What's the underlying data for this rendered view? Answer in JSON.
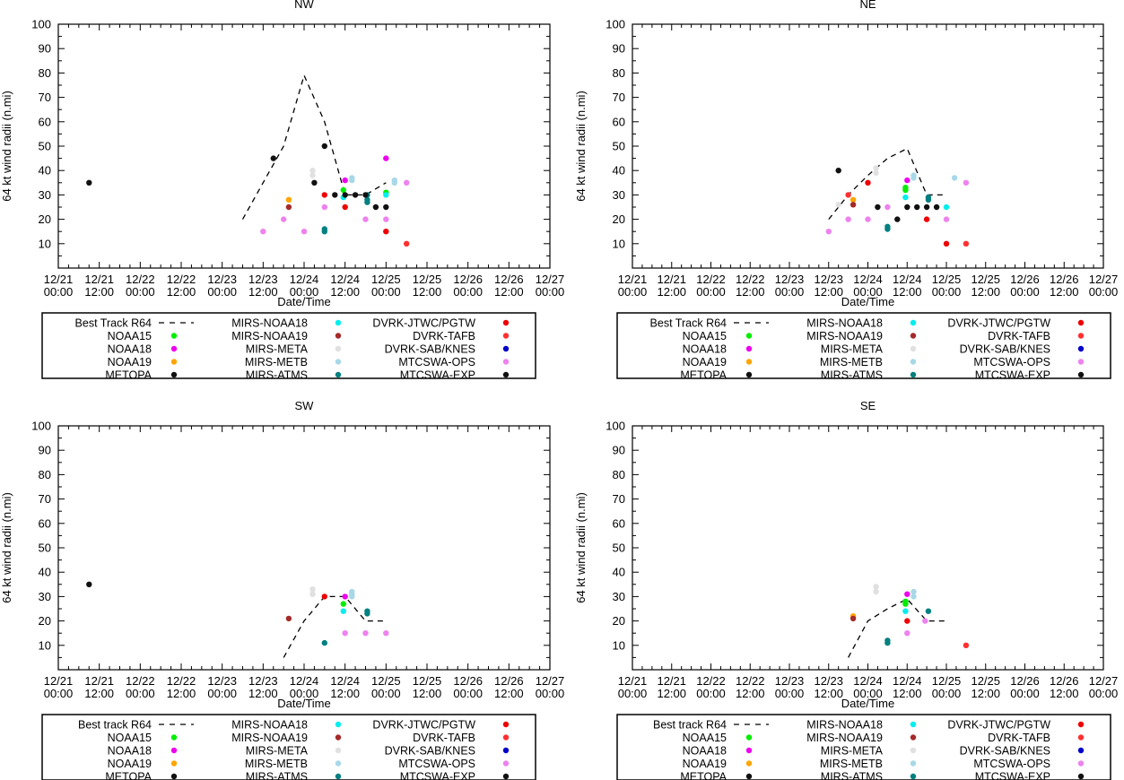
{
  "figure": {
    "x_tick_labels": [
      [
        "12/21",
        "00:00"
      ],
      [
        "12/21",
        "12:00"
      ],
      [
        "12/22",
        "00:00"
      ],
      [
        "12/22",
        "12:00"
      ],
      [
        "12/23",
        "00:00"
      ],
      [
        "12/23",
        "12:00"
      ],
      [
        "12/24",
        "00:00"
      ],
      [
        "12/24",
        "12:00"
      ],
      [
        "12/25",
        "00:00"
      ],
      [
        "12/25",
        "12:00"
      ],
      [
        "12/26",
        "00:00"
      ],
      [
        "12/26",
        "12:00"
      ],
      [
        "12/27",
        "00:00"
      ]
    ],
    "y_ticks": [
      10,
      20,
      30,
      40,
      50,
      60,
      70,
      80,
      90,
      100
    ],
    "xlabel": "Date/Time",
    "ylabel": "64 kt wind radii (n.mi)"
  },
  "colors": {
    "NOAA15": "#00ee00",
    "NOAA18": "#ee00ee",
    "NOAA19": "#ffa500",
    "METOPA": "#111111",
    "MIRS-NOAA18": "#00eeee",
    "MIRS-NOAA19": "#a52a2a",
    "MIRS-META": "#e0e0e0",
    "MIRS-METB": "#a8d8e8",
    "MIRS-ATMS": "#008080",
    "DVRK-JTWC/PGTW": "#ee0000",
    "DVRK-TAFB": "#ff3030",
    "DVRK-SAB/KNES": "#0000cc",
    "MTCSWA-OPS": "#ee82ee",
    "MTCSWA-EXP": "#111111"
  },
  "chart_data": [
    {
      "type": "scatter",
      "title": "NW",
      "xlabel": "Date/Time",
      "ylabel": "64 kt wind radii (n.mi)",
      "xlim_hours": [
        0,
        144
      ],
      "ylim": [
        0,
        100
      ],
      "legend": {
        "position": "below",
        "columns": [
          [
            "Best Track R64",
            "NOAA15",
            "NOAA18",
            "NOAA19",
            "METOPA"
          ],
          [
            "MIRS-NOAA18",
            "MIRS-NOAA19",
            "MIRS-META",
            "MIRS-METB",
            "MIRS-ATMS"
          ],
          [
            "DVRK-JTWC/PGTW",
            "DVRK-TAFB",
            "DVRK-SAB/KNES",
            "MTCSWA-OPS",
            "MTCSWA-EXP"
          ]
        ]
      },
      "best_track": [
        [
          54,
          20
        ],
        [
          60,
          35
        ],
        [
          66,
          50
        ],
        [
          72,
          79
        ],
        [
          78,
          60
        ],
        [
          84,
          30
        ],
        [
          90,
          30
        ],
        [
          96,
          35
        ]
      ],
      "points": [
        {
          "s": "METOPA",
          "x": 9,
          "y": 35
        },
        {
          "s": "METOPA",
          "x": 63,
          "y": 45
        },
        {
          "s": "MTCSWA-OPS",
          "x": 60,
          "y": 15
        },
        {
          "s": "MTCSWA-OPS",
          "x": 66,
          "y": 20
        },
        {
          "s": "NOAA19",
          "x": 67.5,
          "y": 28
        },
        {
          "s": "MIRS-NOAA19",
          "x": 67.5,
          "y": 25
        },
        {
          "s": "MTCSWA-OPS",
          "x": 72,
          "y": 15
        },
        {
          "s": "MIRS-META",
          "x": 74.5,
          "y": 40
        },
        {
          "s": "MIRS-META",
          "x": 74.5,
          "y": 38
        },
        {
          "s": "METOPA",
          "x": 75,
          "y": 35
        },
        {
          "s": "MIRS-ATMS",
          "x": 78,
          "y": 16
        },
        {
          "s": "MIRS-ATMS",
          "x": 78,
          "y": 15
        },
        {
          "s": "MTCSWA-OPS",
          "x": 78,
          "y": 25
        },
        {
          "s": "METOPA",
          "x": 78,
          "y": 50
        },
        {
          "s": "DVRK-JTWC/PGTW",
          "x": 78,
          "y": 30
        },
        {
          "s": "MTCSWA-EXP",
          "x": 81,
          "y": 30
        },
        {
          "s": "NOAA15",
          "x": 83.5,
          "y": 32
        },
        {
          "s": "MIRS-NOAA18",
          "x": 83.5,
          "y": 29
        },
        {
          "s": "NOAA18",
          "x": 84,
          "y": 36
        },
        {
          "s": "DVRK-JTWC/PGTW",
          "x": 84,
          "y": 25
        },
        {
          "s": "MTCSWA-EXP",
          "x": 84,
          "y": 30
        },
        {
          "s": "MIRS-METB",
          "x": 86,
          "y": 37
        },
        {
          "s": "MIRS-METB",
          "x": 86,
          "y": 36
        },
        {
          "s": "MTCSWA-EXP",
          "x": 87,
          "y": 30
        },
        {
          "s": "MTCSWA-OPS",
          "x": 90,
          "y": 20
        },
        {
          "s": "MIRS-ATMS",
          "x": 90.5,
          "y": 30
        },
        {
          "s": "MIRS-ATMS",
          "x": 90.5,
          "y": 28
        },
        {
          "s": "MIRS-ATMS",
          "x": 90.5,
          "y": 27
        },
        {
          "s": "MTCSWA-EXP",
          "x": 90,
          "y": 30
        },
        {
          "s": "MTCSWA-EXP",
          "x": 93,
          "y": 25
        },
        {
          "s": "MTCSWA-EXP",
          "x": 96,
          "y": 25
        },
        {
          "s": "NOAA15",
          "x": 96,
          "y": 31
        },
        {
          "s": "MIRS-NOAA18",
          "x": 96,
          "y": 30
        },
        {
          "s": "NOAA18",
          "x": 96,
          "y": 45
        },
        {
          "s": "DVRK-JTWC/PGTW",
          "x": 96,
          "y": 15
        },
        {
          "s": "MTCSWA-OPS",
          "x": 96,
          "y": 20
        },
        {
          "s": "MIRS-METB",
          "x": 98.5,
          "y": 36
        },
        {
          "s": "MIRS-METB",
          "x": 98.5,
          "y": 35
        },
        {
          "s": "MTCSWA-OPS",
          "x": 102,
          "y": 35
        },
        {
          "s": "DVRK-TAFB",
          "x": 102,
          "y": 10
        }
      ]
    },
    {
      "type": "scatter",
      "title": "NE",
      "xlabel": "Date/Time",
      "ylabel": "64 kt wind radii (n.mi)",
      "xlim_hours": [
        0,
        144
      ],
      "ylim": [
        0,
        100
      ],
      "legend": {
        "position": "below",
        "columns": [
          [
            "Best Track R64",
            "NOAA15",
            "NOAA18",
            "NOAA19",
            "METOPA"
          ],
          [
            "MIRS-NOAA18",
            "MIRS-NOAA19",
            "MIRS-META",
            "MIRS-METB",
            "MIRS-ATMS"
          ],
          [
            "DVRK-JTWC/PGTW",
            "DVRK-TAFB",
            "DVRK-SAB/KNES",
            "MTCSWA-OPS",
            "MTCSWA-EXP"
          ]
        ]
      },
      "best_track": [
        [
          60,
          20
        ],
        [
          66,
          30
        ],
        [
          72,
          38
        ],
        [
          78,
          45
        ],
        [
          84,
          49
        ],
        [
          90,
          30
        ],
        [
          96,
          30
        ]
      ],
      "points": [
        {
          "s": "MIRS-META",
          "x": 63,
          "y": 26
        },
        {
          "s": "METOPA",
          "x": 63,
          "y": 40
        },
        {
          "s": "MTCSWA-OPS",
          "x": 60,
          "y": 15
        },
        {
          "s": "DVRK-TAFB",
          "x": 66,
          "y": 30
        },
        {
          "s": "MTCSWA-OPS",
          "x": 66,
          "y": 20
        },
        {
          "s": "NOAA19",
          "x": 67.5,
          "y": 28
        },
        {
          "s": "MIRS-NOAA19",
          "x": 67.5,
          "y": 26
        },
        {
          "s": "DVRK-JTWC/PGTW",
          "x": 72,
          "y": 35
        },
        {
          "s": "MTCSWA-OPS",
          "x": 72,
          "y": 20
        },
        {
          "s": "MIRS-META",
          "x": 74.5,
          "y": 41
        },
        {
          "s": "MIRS-META",
          "x": 74.5,
          "y": 39
        },
        {
          "s": "MTCSWA-EXP",
          "x": 75,
          "y": 25
        },
        {
          "s": "MIRS-ATMS",
          "x": 78,
          "y": 17
        },
        {
          "s": "MIRS-ATMS",
          "x": 78,
          "y": 16
        },
        {
          "s": "MTCSWA-OPS",
          "x": 78,
          "y": 25
        },
        {
          "s": "MTCSWA-EXP",
          "x": 81,
          "y": 20
        },
        {
          "s": "NOAA15",
          "x": 83.5,
          "y": 32
        },
        {
          "s": "NOAA15",
          "x": 83.5,
          "y": 33
        },
        {
          "s": "MIRS-NOAA18",
          "x": 83.5,
          "y": 29
        },
        {
          "s": "NOAA18",
          "x": 84,
          "y": 36
        },
        {
          "s": "MTCSWA-EXP",
          "x": 84,
          "y": 25
        },
        {
          "s": "MIRS-METB",
          "x": 86,
          "y": 38
        },
        {
          "s": "MIRS-METB",
          "x": 86,
          "y": 37
        },
        {
          "s": "MTCSWA-EXP",
          "x": 87,
          "y": 25
        },
        {
          "s": "MTCSWA-EXP",
          "x": 90,
          "y": 25
        },
        {
          "s": "DVRK-JTWC/PGTW",
          "x": 90,
          "y": 20
        },
        {
          "s": "MIRS-ATMS",
          "x": 90.5,
          "y": 29
        },
        {
          "s": "MIRS-ATMS",
          "x": 90.5,
          "y": 28
        },
        {
          "s": "MTCSWA-EXP",
          "x": 93,
          "y": 25
        },
        {
          "s": "MTCSWA-OPS",
          "x": 96,
          "y": 20
        },
        {
          "s": "MIRS-NOAA18",
          "x": 96,
          "y": 25
        },
        {
          "s": "DVRK-JTWC/PGTW",
          "x": 96,
          "y": 10
        },
        {
          "s": "MIRS-METB",
          "x": 98.5,
          "y": 37
        },
        {
          "s": "MTCSWA-OPS",
          "x": 102,
          "y": 35
        },
        {
          "s": "DVRK-TAFB",
          "x": 102,
          "y": 10
        }
      ]
    },
    {
      "type": "scatter",
      "title": "SW",
      "xlabel": "Date/Time",
      "ylabel": "64 kt wind radii (n.mi)",
      "xlim_hours": [
        0,
        144
      ],
      "ylim": [
        0,
        100
      ],
      "legend": {
        "position": "below",
        "columns": [
          [
            "Best track R64",
            "NOAA15",
            "NOAA18",
            "NOAA19",
            "METOPA"
          ],
          [
            "MIRS-NOAA18",
            "MIRS-NOAA19",
            "MIRS-META",
            "MIRS-METB",
            "MIRS-ATMS"
          ],
          [
            "DVRK-JTWC/PGTW",
            "DVRK-TAFB",
            "DVRK-SAB/KNES",
            "MTCSWA-OPS",
            "MTCSWA-EXP"
          ]
        ]
      },
      "best_track": [
        [
          66,
          5
        ],
        [
          72,
          20
        ],
        [
          78,
          30
        ],
        [
          84,
          30
        ],
        [
          90,
          20
        ],
        [
          96,
          20
        ]
      ],
      "points": [
        {
          "s": "METOPA",
          "x": 9,
          "y": 35
        },
        {
          "s": "MIRS-NOAA19",
          "x": 67.5,
          "y": 21
        },
        {
          "s": "MIRS-META",
          "x": 74.5,
          "y": 33
        },
        {
          "s": "MIRS-META",
          "x": 74.5,
          "y": 31
        },
        {
          "s": "MIRS-ATMS",
          "x": 78,
          "y": 11
        },
        {
          "s": "DVRK-JTWC/PGTW",
          "x": 78,
          "y": 30
        },
        {
          "s": "NOAA15",
          "x": 83.5,
          "y": 27
        },
        {
          "s": "MIRS-NOAA18",
          "x": 83.5,
          "y": 24
        },
        {
          "s": "NOAA18",
          "x": 84,
          "y": 30
        },
        {
          "s": "MTCSWA-OPS",
          "x": 84,
          "y": 15
        },
        {
          "s": "MIRS-METB",
          "x": 86,
          "y": 32
        },
        {
          "s": "MIRS-METB",
          "x": 86,
          "y": 31
        },
        {
          "s": "MIRS-METB",
          "x": 86,
          "y": 30
        },
        {
          "s": "MIRS-ATMS",
          "x": 90.5,
          "y": 24
        },
        {
          "s": "MIRS-ATMS",
          "x": 90.5,
          "y": 23
        },
        {
          "s": "MTCSWA-OPS",
          "x": 90,
          "y": 15
        },
        {
          "s": "MTCSWA-OPS",
          "x": 96,
          "y": 15
        }
      ]
    },
    {
      "type": "scatter",
      "title": "SE",
      "xlabel": "Date/Time",
      "ylabel": "64 kt wind radii (n.mi)",
      "xlim_hours": [
        0,
        144
      ],
      "ylim": [
        0,
        100
      ],
      "legend": {
        "position": "below",
        "columns": [
          [
            "Best track R64",
            "NOAA15",
            "NOAA18",
            "NOAA19",
            "METOPA"
          ],
          [
            "MIRS-NOAA18",
            "MIRS-NOAA19",
            "MIRS-META",
            "MIRS-METB",
            "MIRS-ATMS"
          ],
          [
            "DVRK-JTWC/PGTW",
            "DVRK-TAFB",
            "DVRK-SAB/KNES",
            "MTCSWA-OPS",
            "MTCSWA-EXP"
          ]
        ]
      },
      "best_track": [
        [
          66,
          5
        ],
        [
          72,
          20
        ],
        [
          78,
          25
        ],
        [
          84,
          29
        ],
        [
          90,
          20
        ],
        [
          96,
          20
        ]
      ],
      "points": [
        {
          "s": "NOAA19",
          "x": 67.5,
          "y": 22
        },
        {
          "s": "MIRS-NOAA19",
          "x": 67.5,
          "y": 21
        },
        {
          "s": "MIRS-META",
          "x": 74.5,
          "y": 34
        },
        {
          "s": "MIRS-META",
          "x": 74.5,
          "y": 32
        },
        {
          "s": "MIRS-ATMS",
          "x": 78,
          "y": 12
        },
        {
          "s": "MIRS-ATMS",
          "x": 78,
          "y": 11
        },
        {
          "s": "NOAA15",
          "x": 83.5,
          "y": 28
        },
        {
          "s": "NOAA15",
          "x": 83.5,
          "y": 27
        },
        {
          "s": "MIRS-NOAA18",
          "x": 83.5,
          "y": 24
        },
        {
          "s": "NOAA18",
          "x": 84,
          "y": 31
        },
        {
          "s": "DVRK-JTWC/PGTW",
          "x": 84,
          "y": 20
        },
        {
          "s": "MTCSWA-OPS",
          "x": 84,
          "y": 15
        },
        {
          "s": "MIRS-METB",
          "x": 86,
          "y": 32
        },
        {
          "s": "MIRS-METB",
          "x": 86,
          "y": 30
        },
        {
          "s": "MTCSWA-OPS",
          "x": 89.5,
          "y": 20
        },
        {
          "s": "MIRS-ATMS",
          "x": 90.5,
          "y": 24
        },
        {
          "s": "DVRK-TAFB",
          "x": 102,
          "y": 10
        }
      ]
    }
  ]
}
